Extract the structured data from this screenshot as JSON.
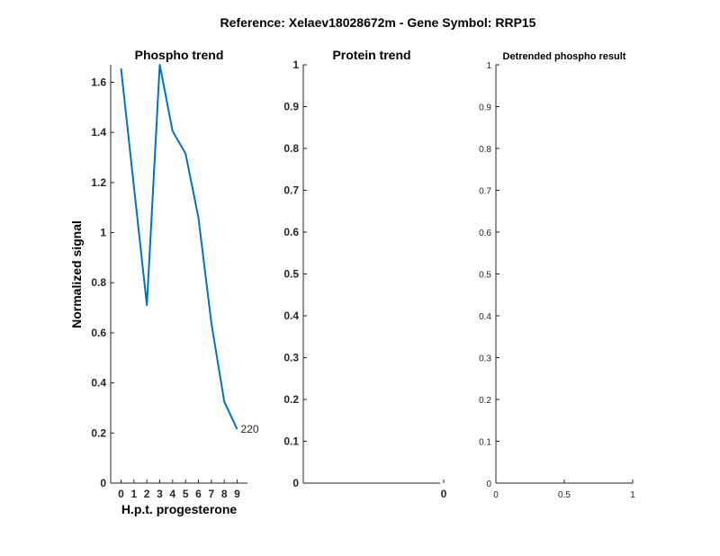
{
  "figure": {
    "title": "Reference:  Xelaev18028672m - Gene Symbol:  RRP15"
  },
  "chart_data": [
    {
      "type": "line",
      "title": "Phospho trend",
      "xlabel": "H.p.t. progesterone",
      "ylabel": "Normalized signal",
      "x": [
        0,
        2,
        3,
        4,
        5,
        6,
        7,
        8,
        9
      ],
      "series": [
        {
          "values": [
            1.655,
            0.71,
            1.67,
            1.405,
            1.315,
            1.06,
            0.64,
            0.325,
            0.215
          ],
          "color": "#0072BD"
        }
      ],
      "annotations": [
        {
          "x": 9,
          "y": 0.215,
          "text": "220"
        }
      ],
      "xticks": [
        "0",
        "1",
        "2",
        "3",
        "4",
        "5",
        "6",
        "7",
        "8",
        "9"
      ],
      "yticks": [
        "0",
        "0.2",
        "0.4",
        "0.6",
        "0.8",
        "1",
        "1.2",
        "1.4",
        "1.6"
      ],
      "xlim": [
        -0.8,
        9.8
      ],
      "ylim": [
        0,
        1.67
      ],
      "grid": false
    },
    {
      "type": "line",
      "title": "Protein trend",
      "xlabel": "",
      "ylabel": "",
      "series": [],
      "xticks": [
        "0"
      ],
      "yticks": [
        "0",
        "0.1",
        "0.2",
        "0.3",
        "0.4",
        "0.5",
        "0.6",
        "0.7",
        "0.8",
        "0.9",
        "1"
      ],
      "ylim": [
        0,
        1
      ],
      "grid": false
    },
    {
      "type": "line",
      "title": "Detrended phospho result",
      "xlabel": "",
      "ylabel": "",
      "series": [],
      "xticks": [
        "0",
        "0.5",
        "1"
      ],
      "yticks": [
        "0",
        "0.1",
        "0.2",
        "0.3",
        "0.4",
        "0.5",
        "0.6",
        "0.7",
        "0.8",
        "0.9",
        "1"
      ],
      "xlim": [
        0,
        1
      ],
      "ylim": [
        0,
        1
      ],
      "grid": false
    }
  ]
}
